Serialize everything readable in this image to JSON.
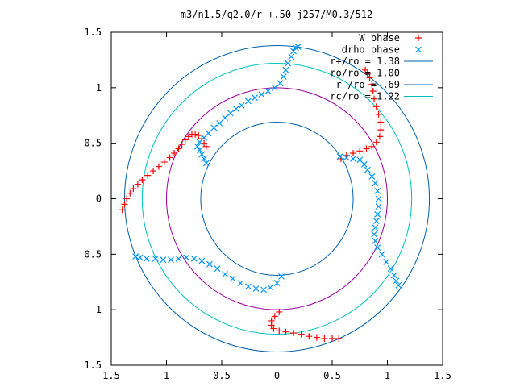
{
  "chart_data": {
    "type": "scatter",
    "title": "m3/n1.5/q2.0/r-+.50-j257/M0.3/512",
    "xlabel": "",
    "ylabel": "",
    "xlim": [
      -1.5,
      1.5
    ],
    "ylim": [
      -1.5,
      1.5
    ],
    "x_ticks": [
      -1.5,
      -1,
      -0.5,
      0,
      0.5,
      1,
      1.5
    ],
    "y_ticks": [
      -1.5,
      -1,
      -0.5,
      0,
      0.5,
      1,
      1.5
    ],
    "x_tick_labels": [
      "1.5",
      "1",
      "0.5",
      "0",
      "0.5",
      "1",
      "1.5"
    ],
    "y_tick_labels": [
      "1.5",
      "1",
      "0.5",
      "0",
      "0.5",
      "1",
      "1.5"
    ],
    "grid": false,
    "legend_position": "top-right",
    "circles": [
      {
        "label": "r+/ro = 1.38",
        "radius": 1.38,
        "color": "#0060ad"
      },
      {
        "label": "ro/ro = 1.00",
        "radius": 1.0,
        "color": "#a000a0"
      },
      {
        "label": "r-/ro = .69",
        "radius": 0.69,
        "color": "#0060ad"
      },
      {
        "label": "rc/ro = 1.22",
        "radius": 1.22,
        "color": "#00c0c0"
      }
    ],
    "series": [
      {
        "name": "W phase",
        "marker": "plus",
        "color": "#ff0000",
        "points": [
          [
            -1.4,
            -0.1
          ],
          [
            -1.38,
            -0.05
          ],
          [
            -1.36,
            0.0
          ],
          [
            -1.33,
            0.05
          ],
          [
            -1.3,
            0.09
          ],
          [
            -1.26,
            0.13
          ],
          [
            -1.22,
            0.17
          ],
          [
            -1.17,
            0.21
          ],
          [
            -1.12,
            0.25
          ],
          [
            -1.07,
            0.29
          ],
          [
            -1.02,
            0.33
          ],
          [
            -0.97,
            0.37
          ],
          [
            -0.93,
            0.41
          ],
          [
            -0.89,
            0.45
          ],
          [
            -0.86,
            0.49
          ],
          [
            -0.83,
            0.53
          ],
          [
            -0.8,
            0.56
          ],
          [
            -0.77,
            0.58
          ],
          [
            -0.74,
            0.58
          ],
          [
            -0.71,
            0.57
          ],
          [
            -0.68,
            0.54
          ],
          [
            -0.66,
            0.5
          ],
          [
            -0.64,
            0.47
          ],
          [
            0.58,
            0.36
          ],
          [
            0.63,
            0.39
          ],
          [
            0.69,
            0.41
          ],
          [
            0.75,
            0.43
          ],
          [
            0.81,
            0.45
          ],
          [
            0.86,
            0.47
          ],
          [
            0.9,
            0.51
          ],
          [
            0.93,
            0.56
          ],
          [
            0.94,
            0.62
          ],
          [
            0.94,
            0.69
          ],
          [
            0.92,
            0.76
          ],
          [
            0.9,
            0.83
          ],
          [
            0.88,
            0.9
          ],
          [
            0.87,
            0.97
          ],
          [
            0.86,
            1.03
          ],
          [
            0.84,
            1.09
          ],
          [
            0.82,
            1.13
          ],
          [
            0.8,
            1.16
          ],
          [
            0.02,
            -1.02
          ],
          [
            -0.02,
            -1.06
          ],
          [
            -0.05,
            -1.1
          ],
          [
            -0.05,
            -1.14
          ],
          [
            -0.03,
            -1.17
          ],
          [
            0.02,
            -1.19
          ],
          [
            0.08,
            -1.2
          ],
          [
            0.15,
            -1.21
          ],
          [
            0.22,
            -1.22
          ],
          [
            0.29,
            -1.24
          ],
          [
            0.36,
            -1.25
          ],
          [
            0.43,
            -1.26
          ],
          [
            0.5,
            -1.26
          ],
          [
            0.56,
            -1.26
          ]
        ]
      },
      {
        "name": "drho phase",
        "marker": "cross",
        "color": "#0096ff",
        "points": [
          [
            -0.64,
            0.32
          ],
          [
            -0.66,
            0.36
          ],
          [
            -0.68,
            0.4
          ],
          [
            -0.7,
            0.44
          ],
          [
            -0.72,
            0.47
          ],
          [
            -0.7,
            0.51
          ],
          [
            -0.66,
            0.55
          ],
          [
            -0.62,
            0.59
          ],
          [
            -0.57,
            0.64
          ],
          [
            -0.52,
            0.68
          ],
          [
            -0.47,
            0.73
          ],
          [
            -0.42,
            0.77
          ],
          [
            -0.37,
            0.81
          ],
          [
            -0.32,
            0.84
          ],
          [
            -0.26,
            0.88
          ],
          [
            -0.2,
            0.91
          ],
          [
            -0.14,
            0.94
          ],
          [
            -0.08,
            0.97
          ],
          [
            -0.02,
            1.0
          ],
          [
            0.03,
            1.04
          ],
          [
            0.06,
            1.1
          ],
          [
            0.08,
            1.16
          ],
          [
            0.1,
            1.22
          ],
          [
            0.13,
            1.28
          ],
          [
            0.15,
            1.33
          ],
          [
            0.17,
            1.36
          ],
          [
            0.19,
            1.37
          ],
          [
            0.57,
            0.38
          ],
          [
            0.63,
            0.37
          ],
          [
            0.69,
            0.36
          ],
          [
            0.75,
            0.35
          ],
          [
            0.79,
            0.31
          ],
          [
            0.82,
            0.26
          ],
          [
            0.86,
            0.2
          ],
          [
            0.89,
            0.14
          ],
          [
            0.91,
            0.07
          ],
          [
            0.92,
            0.0
          ],
          [
            0.92,
            -0.07
          ],
          [
            0.91,
            -0.14
          ],
          [
            0.9,
            -0.2
          ],
          [
            0.89,
            -0.26
          ],
          [
            0.88,
            -0.32
          ],
          [
            0.89,
            -0.38
          ],
          [
            0.91,
            -0.44
          ],
          [
            0.95,
            -0.5
          ],
          [
            0.99,
            -0.57
          ],
          [
            1.03,
            -0.63
          ],
          [
            1.06,
            -0.69
          ],
          [
            1.08,
            -0.74
          ],
          [
            1.1,
            -0.78
          ],
          [
            0.04,
            -0.7
          ],
          [
            0.0,
            -0.76
          ],
          [
            -0.06,
            -0.8
          ],
          [
            -0.12,
            -0.82
          ],
          [
            -0.19,
            -0.81
          ],
          [
            -0.26,
            -0.79
          ],
          [
            -0.33,
            -0.76
          ],
          [
            -0.4,
            -0.72
          ],
          [
            -0.47,
            -0.68
          ],
          [
            -0.54,
            -0.63
          ],
          [
            -0.61,
            -0.59
          ],
          [
            -0.68,
            -0.56
          ],
          [
            -0.75,
            -0.54
          ],
          [
            -0.82,
            -0.53
          ],
          [
            -0.89,
            -0.54
          ],
          [
            -0.96,
            -0.55
          ],
          [
            -1.03,
            -0.55
          ],
          [
            -1.1,
            -0.54
          ],
          [
            -1.18,
            -0.54
          ],
          [
            -1.24,
            -0.53
          ],
          [
            -1.28,
            -0.52
          ]
        ]
      }
    ]
  }
}
